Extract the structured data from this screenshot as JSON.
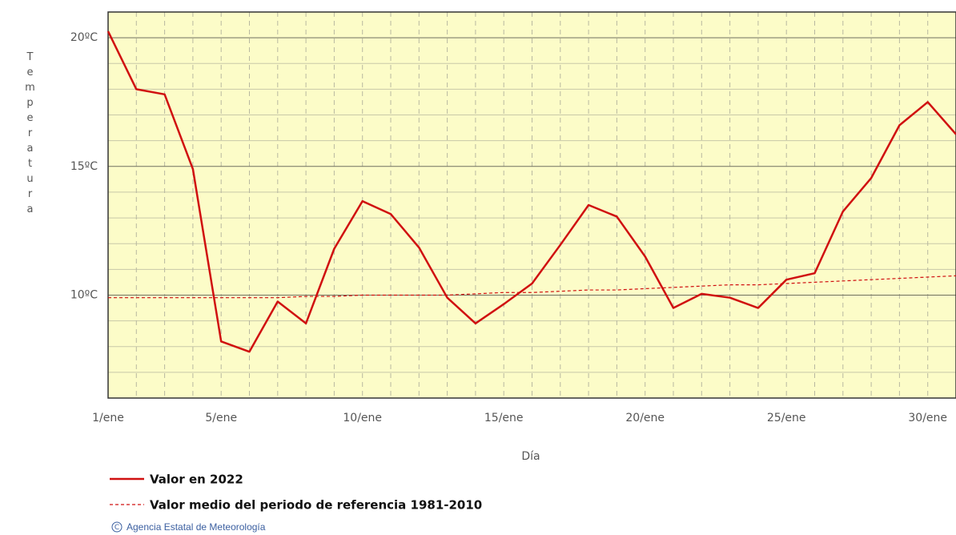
{
  "chart_data": {
    "type": "line",
    "y_label": "Temperatura",
    "x_label": "Día",
    "x": [
      1,
      2,
      3,
      4,
      5,
      6,
      7,
      8,
      9,
      10,
      11,
      12,
      13,
      14,
      15,
      16,
      17,
      18,
      19,
      20,
      21,
      22,
      23,
      24,
      25,
      26,
      27,
      28,
      29,
      30,
      31
    ],
    "xlim": [
      1,
      31
    ],
    "xticks": [
      {
        "value": 1,
        "label": "1/ene"
      },
      {
        "value": 5,
        "label": "5/ene"
      },
      {
        "value": 10,
        "label": "10/ene"
      },
      {
        "value": 15,
        "label": "15/ene"
      },
      {
        "value": 20,
        "label": "20/ene"
      },
      {
        "value": 25,
        "label": "25/ene"
      },
      {
        "value": 30,
        "label": "30/ene"
      }
    ],
    "ylim": [
      6,
      21
    ],
    "yticks": [
      {
        "value": 10,
        "label": "10ºC"
      },
      {
        "value": 15,
        "label": "15ºC"
      },
      {
        "value": 20,
        "label": "20ºC"
      }
    ],
    "y_minor_ticks": [
      7,
      8,
      9,
      11,
      12,
      13,
      14,
      16,
      17,
      18,
      19,
      21
    ],
    "grid": true,
    "series": [
      {
        "name": "Valor en 2022",
        "color": "#d01010",
        "dashed": false,
        "values": [
          20.25,
          18.0,
          17.8,
          14.9,
          8.2,
          7.8,
          9.75,
          8.9,
          11.8,
          13.65,
          13.15,
          11.85,
          9.9,
          8.9,
          9.65,
          10.45,
          11.95,
          13.5,
          13.05,
          11.5,
          9.5,
          10.05,
          9.9,
          9.5,
          10.6,
          10.85,
          13.25,
          14.55,
          16.6,
          17.5,
          16.25
        ]
      },
      {
        "name": "Valor medio del periodo de referencia 1981-2010",
        "color": "#d01010",
        "dashed": true,
        "values": [
          9.9,
          9.9,
          9.9,
          9.9,
          9.9,
          9.9,
          9.9,
          9.95,
          9.95,
          10.0,
          10.0,
          10.0,
          10.0,
          10.05,
          10.1,
          10.1,
          10.15,
          10.2,
          10.2,
          10.25,
          10.3,
          10.35,
          10.4,
          10.4,
          10.45,
          10.5,
          10.55,
          10.6,
          10.65,
          10.7,
          10.75
        ]
      }
    ],
    "credit": "Agencia Estatal de Meteorología"
  }
}
